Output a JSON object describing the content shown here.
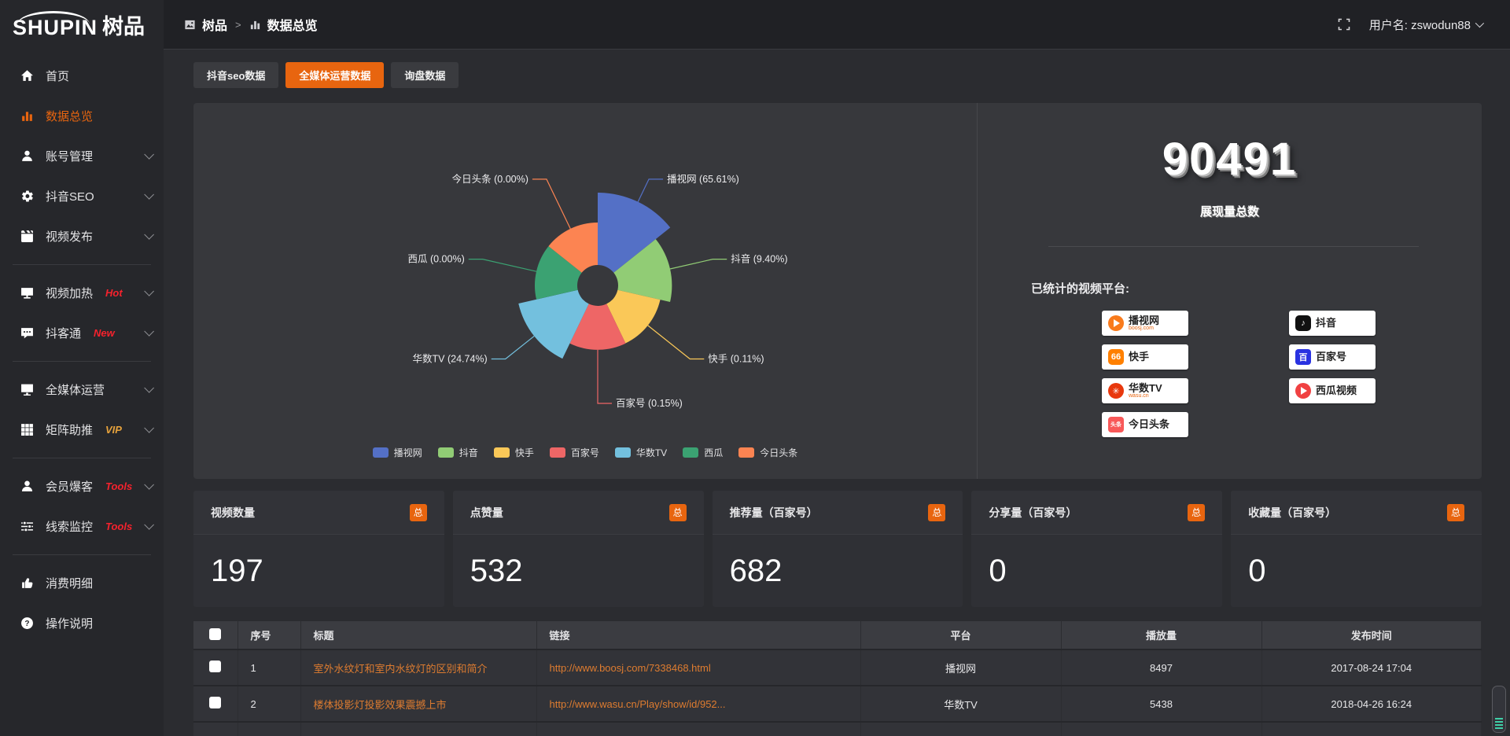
{
  "sidebar": {
    "logo": {
      "brand_en": "SHUPIN",
      "brand_cn": "树品"
    },
    "items": [
      {
        "label": "首页",
        "icon": "home-icon"
      },
      {
        "label": "数据总览",
        "icon": "bar-chart-icon",
        "active": true
      },
      {
        "label": "账号管理",
        "icon": "user-icon",
        "expandable": true
      },
      {
        "label": "抖音SEO",
        "icon": "gear-icon",
        "expandable": true
      },
      {
        "label": "视频发布",
        "icon": "video-icon",
        "expandable": true
      },
      {
        "divider": true
      },
      {
        "label": "视频加热",
        "icon": "monitor-icon",
        "badge": "Hot",
        "badge_color": "#f5222d",
        "expandable": true
      },
      {
        "label": "抖客通",
        "icon": "chat-icon",
        "badge": "New",
        "badge_color": "#f5222d",
        "expandable": true
      },
      {
        "divider": true
      },
      {
        "label": "全媒体运营",
        "icon": "screen-icon",
        "expandable": true
      },
      {
        "label": "矩阵助推",
        "icon": "grid-icon",
        "badge": "VIP",
        "badge_color": "#e6a23c",
        "expandable": true
      },
      {
        "divider": true
      },
      {
        "label": "会员爆客",
        "icon": "member-icon",
        "badge": "Tools",
        "badge_color": "#f5222d",
        "expandable": true
      },
      {
        "label": "线索监控",
        "icon": "sliders-icon",
        "badge": "Tools",
        "badge_color": "#f5222d",
        "expandable": true
      },
      {
        "divider": true
      },
      {
        "label": "消费明细",
        "icon": "like-icon"
      },
      {
        "label": "操作说明",
        "icon": "help-icon"
      }
    ]
  },
  "header": {
    "breadcrumb": {
      "root": "树品",
      "separator": ">",
      "current": "数据总览"
    },
    "user": {
      "text": "用户名: zswodun88"
    }
  },
  "tabs": [
    {
      "label": "抖音seo数据",
      "active": false
    },
    {
      "label": "全媒体运营数据",
      "active": true
    },
    {
      "label": "询盘数据",
      "active": false
    }
  ],
  "chart_data": {
    "type": "pie",
    "variant": "nightingale-rose",
    "legend_position": "bottom",
    "series_items": [
      {
        "name": "播视网",
        "percent": 65.61,
        "label": "播视网 (65.61%)",
        "color": "#5470c6"
      },
      {
        "name": "抖音",
        "percent": 9.4,
        "label": "抖音 (9.40%)",
        "color": "#91cc75"
      },
      {
        "name": "快手",
        "percent": 0.11,
        "label": "快手 (0.11%)",
        "color": "#fac858"
      },
      {
        "name": "百家号",
        "percent": 0.15,
        "label": "百家号 (0.15%)",
        "color": "#ee6666"
      },
      {
        "name": "华数TV",
        "percent": 24.74,
        "label": "华数TV (24.74%)",
        "color": "#73c0de"
      },
      {
        "name": "西瓜",
        "percent": 0.0,
        "label": "西瓜 (0.00%)",
        "color": "#3ba272"
      },
      {
        "name": "今日头条",
        "percent": 0.0,
        "label": "今日头条 (0.00%)",
        "color": "#fc8452"
      }
    ]
  },
  "overview": {
    "total": "90491",
    "total_label": "展现量总数",
    "platforms_label": "已统计的视频平台:",
    "platforms": [
      {
        "name": "播视网",
        "sub": "boosj.com",
        "style": "boosj"
      },
      {
        "name": "抖音",
        "style": "douyin"
      },
      {
        "name": "快手",
        "style": "kuaishou"
      },
      {
        "name": "百家号",
        "style": "baijia"
      },
      {
        "name": "华数TV",
        "sub": "wasu.cn",
        "style": "wasu"
      },
      {
        "name": "西瓜视频",
        "style": "xigua"
      },
      {
        "name": "今日头条",
        "style": "toutiao"
      }
    ]
  },
  "stats": [
    {
      "title": "视频数量",
      "badge": "总",
      "value": "197"
    },
    {
      "title": "点赞量",
      "badge": "总",
      "value": "532"
    },
    {
      "title": "推荐量（百家号）",
      "badge": "总",
      "value": "682"
    },
    {
      "title": "分享量（百家号）",
      "badge": "总",
      "value": "0"
    },
    {
      "title": "收藏量（百家号）",
      "badge": "总",
      "value": "0"
    }
  ],
  "table": {
    "headers": [
      "序号",
      "标题",
      "链接",
      "平台",
      "播放量",
      "发布时间"
    ],
    "rows": [
      {
        "no": "1",
        "title": "室外水纹灯和室内水纹灯的区别和简介",
        "link": "http://www.boosj.com/7338468.html",
        "platform": "播视网",
        "plays": "8497",
        "time": "2017-08-24 17:04"
      },
      {
        "no": "2",
        "title": "楼体投影灯投影效果震撼上市",
        "link": "http://www.wasu.cn/Play/show/id/952...",
        "platform": "华数TV",
        "plays": "5438",
        "time": "2018-04-26 16:24"
      }
    ],
    "partial_third_row": true
  }
}
